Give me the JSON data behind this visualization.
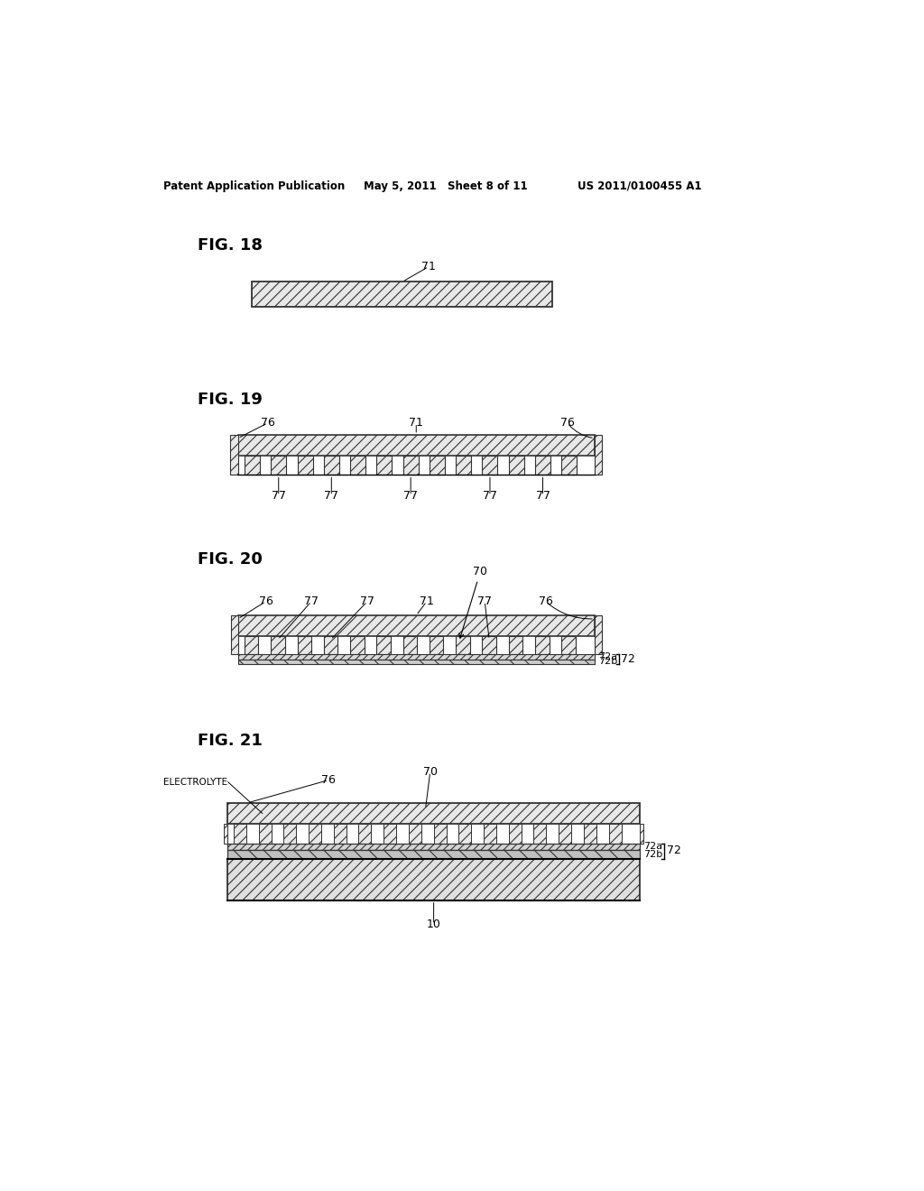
{
  "bg_color": "#ffffff",
  "header_left": "Patent Application Publication",
  "header_mid": "May 5, 2011   Sheet 8 of 11",
  "header_right": "US 2011/0100455 A1",
  "fig18_label": "FIG. 18",
  "fig19_label": "FIG. 19",
  "fig20_label": "FIG. 20",
  "fig21_label": "FIG. 21",
  "outline_color": "#000000",
  "hatch_color": "#444444",
  "fill_light": "#e8e8e8",
  "fill_medium": "#d8d8d8",
  "fill_dark": "#c8c8c8"
}
